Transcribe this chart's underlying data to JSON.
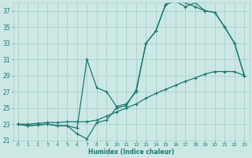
{
  "xlabel": "Humidex (Indice chaleur)",
  "bg_color": "#cce8e4",
  "grid_color": "#aacfcb",
  "line_color": "#1a7870",
  "xlim": [
    -0.5,
    23.5
  ],
  "ylim": [
    21,
    38
  ],
  "xticks": [
    0,
    1,
    2,
    3,
    4,
    5,
    6,
    7,
    8,
    9,
    10,
    11,
    12,
    13,
    14,
    15,
    16,
    17,
    18,
    19,
    20,
    21,
    22,
    23
  ],
  "yticks": [
    21,
    23,
    25,
    27,
    29,
    31,
    33,
    35,
    37
  ],
  "line1_x": [
    0,
    1,
    2,
    3,
    4,
    5,
    6,
    7,
    8,
    9,
    10,
    11,
    12,
    13,
    14,
    15,
    16,
    17,
    18,
    19,
    20,
    21,
    22,
    23
  ],
  "line1_y": [
    23,
    22.8,
    22.9,
    23.0,
    22.8,
    22.8,
    21.8,
    21.2,
    23.2,
    23.5,
    25.0,
    25.3,
    27.2,
    33.0,
    34.5,
    37.8,
    38.2,
    38.0,
    37.5,
    37.0,
    36.8,
    35.0,
    33.0,
    29.0
  ],
  "line2_x": [
    0,
    1,
    2,
    3,
    4,
    5,
    6,
    7,
    8,
    9,
    10,
    11,
    12,
    13,
    14,
    15,
    16,
    17,
    18,
    19,
    20,
    21,
    22,
    23
  ],
  "line2_y": [
    23,
    22.8,
    22.9,
    23.0,
    22.8,
    22.8,
    22.5,
    31.0,
    27.5,
    27.0,
    25.2,
    25.5,
    27.0,
    33.0,
    34.5,
    37.8,
    38.2,
    37.5,
    38.0,
    37.0,
    36.8,
    35.0,
    33.0,
    29.0
  ],
  "line3_x": [
    0,
    1,
    2,
    3,
    4,
    5,
    6,
    7,
    8,
    9,
    10,
    11,
    12,
    13,
    14,
    15,
    16,
    17,
    18,
    19,
    20,
    21,
    22,
    23
  ],
  "line3_y": [
    23,
    23,
    23.1,
    23.2,
    23.2,
    23.3,
    23.3,
    23.3,
    23.5,
    24.0,
    24.5,
    25.0,
    25.5,
    26.2,
    26.8,
    27.3,
    27.8,
    28.3,
    28.7,
    29.2,
    29.5,
    29.5,
    29.5,
    29.0
  ]
}
